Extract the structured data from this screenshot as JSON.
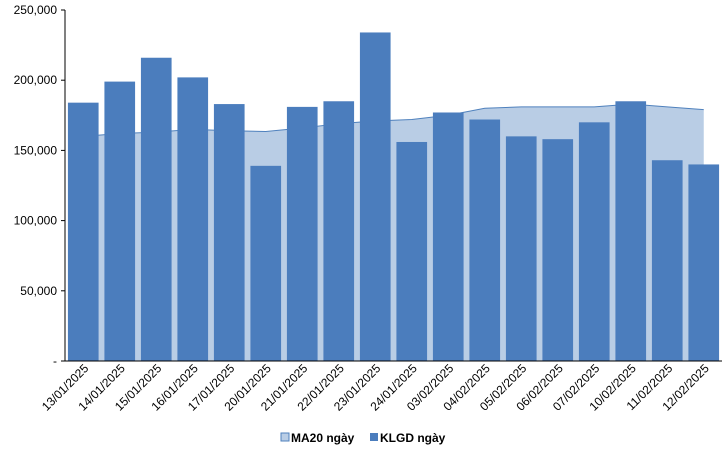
{
  "colors": {
    "bar": "#4b7dbd",
    "area_fill": "#b9cde5",
    "area_stroke": "#4f81bd",
    "axis": "#000000"
  },
  "chart_data": {
    "type": "bar",
    "categories": [
      "13/01/2025",
      "14/01/2025",
      "15/01/2025",
      "16/01/2025",
      "17/01/2025",
      "20/01/2025",
      "21/01/2025",
      "22/01/2025",
      "23/01/2025",
      "24/01/2025",
      "03/02/2025",
      "04/02/2025",
      "05/02/2025",
      "06/02/2025",
      "07/02/2025",
      "10/02/2025",
      "11/02/2025",
      "12/02/2025"
    ],
    "series": [
      {
        "name": "MA20 ngày",
        "kind": "area",
        "values": [
          160000,
          162000,
          163000,
          165000,
          164000,
          163500,
          166000,
          169000,
          171000,
          172000,
          175000,
          180000,
          181000,
          181000,
          181000,
          183000,
          181000,
          179000
        ]
      },
      {
        "name": "KLGD ngày",
        "kind": "bar",
        "values": [
          184000,
          199000,
          216000,
          202000,
          183000,
          139000,
          181000,
          185000,
          234000,
          156000,
          177000,
          172000,
          160000,
          158000,
          170000,
          185000,
          143000,
          140000
        ]
      }
    ],
    "yticks": [
      "-",
      "50,000",
      "100,000",
      "150,000",
      "200,000",
      "250,000"
    ],
    "ylim": [
      0,
      250000
    ],
    "grid": false,
    "legend": "bottom-center"
  }
}
